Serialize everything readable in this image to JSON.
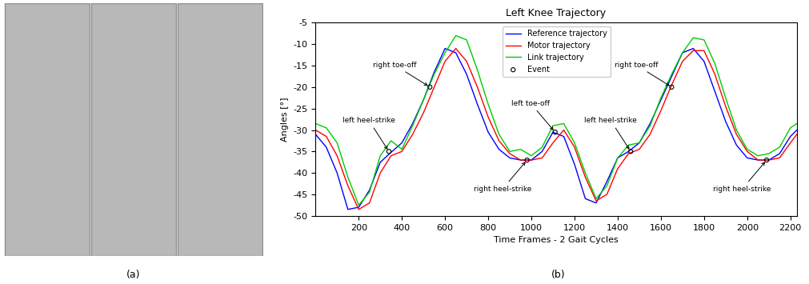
{
  "captions": [
    "(a)",
    "(b)"
  ],
  "chart_data": {
    "type": "line",
    "title": "Left Knee Trajectory",
    "x_label": "Time Frames - 2 Gait Cycles",
    "y_label": "Angles [°]",
    "xlim": [
      0,
      2230
    ],
    "xticks": [
      200,
      400,
      600,
      800,
      1000,
      1200,
      1400,
      1600,
      1800,
      2000,
      2200
    ],
    "ylim": [
      -50,
      -5
    ],
    "yticks": [
      -50,
      -45,
      -40,
      -35,
      -30,
      -25,
      -20,
      -15,
      -10,
      -5
    ],
    "legend": "upper center",
    "grid": false,
    "x": [
      0,
      50,
      100,
      150,
      200,
      250,
      300,
      350,
      400,
      450,
      500,
      550,
      600,
      650,
      700,
      750,
      800,
      850,
      900,
      950,
      1000,
      1050,
      1100,
      1150,
      1200,
      1250,
      1300,
      1350,
      1400,
      1450,
      1500,
      1550,
      1600,
      1650,
      1700,
      1750,
      1800,
      1850,
      1900,
      1950,
      2000,
      2050,
      2100,
      2150,
      2200,
      2230
    ],
    "series": [
      {
        "name": "Reference trajectory",
        "color": "#0000ff",
        "line_style": "solid",
        "values": [
          -31,
          -34,
          -40,
          -48.5,
          -48,
          -44,
          -37.5,
          -35.2,
          -33,
          -28.5,
          -23,
          -16.5,
          -11,
          -12,
          -17,
          -24,
          -30.5,
          -34.5,
          -36.5,
          -37,
          -37,
          -35,
          -30.5,
          -31.5,
          -38,
          -46,
          -47,
          -42,
          -36.5,
          -35,
          -33,
          -28.5,
          -23,
          -17.5,
          -12,
          -11,
          -14,
          -21,
          -28,
          -33.5,
          -36.5,
          -37,
          -37,
          -35.5,
          -31.5,
          -30
        ]
      },
      {
        "name": "Motor trajectory",
        "color": "#ff0000",
        "line_style": "solid",
        "values": [
          -30,
          -31.5,
          -36,
          -43,
          -48.5,
          -47,
          -40,
          -36,
          -35,
          -31,
          -26,
          -20,
          -14,
          -11,
          -14,
          -20,
          -27,
          -32.5,
          -35.5,
          -37,
          -37,
          -36.5,
          -33,
          -30,
          -34,
          -41,
          -46.5,
          -45,
          -39,
          -35.5,
          -34.5,
          -31,
          -25.5,
          -19.5,
          -14,
          -11.5,
          -11.5,
          -17,
          -24.5,
          -31,
          -35,
          -37,
          -37,
          -36.5,
          -33,
          -31
        ]
      },
      {
        "name": "Link trajectory",
        "color": "#00cc00",
        "line_style": "solid",
        "values": [
          -28.5,
          -29.5,
          -33,
          -41,
          -47.5,
          -44.5,
          -36,
          -32.5,
          -34.5,
          -29,
          -23,
          -17,
          -12,
          -8,
          -9,
          -16,
          -24,
          -31,
          -35,
          -34.5,
          -36,
          -34,
          -29,
          -28.5,
          -33,
          -40,
          -46,
          -43,
          -36.5,
          -33.5,
          -33,
          -29,
          -22.5,
          -17,
          -12,
          -8.5,
          -9,
          -14.5,
          -22.5,
          -30,
          -34.5,
          -36,
          -35.5,
          -34,
          -29.5,
          -28.5
        ]
      }
    ],
    "events": {
      "name": "Event",
      "type": "scatter",
      "marker": "o",
      "color": "#000000",
      "x": [
        340,
        530,
        980,
        1110,
        1460,
        1650,
        2090
      ],
      "values": [
        -35,
        -20,
        -37,
        -30.5,
        -35,
        -20,
        -37
      ]
    },
    "annotations": [
      {
        "text": "left heel-strike",
        "x": 340,
        "y": -35
      },
      {
        "text": "right toe-off",
        "x": 530,
        "y": -20
      },
      {
        "text": "right heel-strike",
        "x": 980,
        "y": -37
      },
      {
        "text": "left toe-off",
        "x": 1110,
        "y": -30.5
      },
      {
        "text": "left heel-strike",
        "x": 1460,
        "y": -35
      },
      {
        "text": "right toe-off",
        "x": 1650,
        "y": -20
      },
      {
        "text": "right heel-strike",
        "x": 2090,
        "y": -37
      }
    ]
  }
}
